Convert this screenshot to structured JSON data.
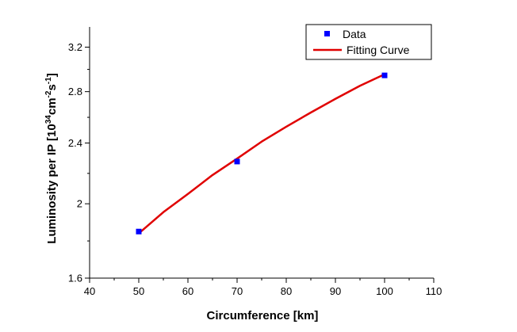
{
  "chart_data": {
    "type": "scatter",
    "xlabel": "Circumference [km]",
    "ylabel": {
      "prefix": "Luminosity per IP [10",
      "exp1": "34",
      "mid1": "cm",
      "exp2": "-2",
      "mid2": "s",
      "exp3": "-1",
      "suffix": "]"
    },
    "xlim": [
      40,
      110
    ],
    "ylim": [
      1.6,
      3.4
    ],
    "yscale": "log",
    "x_ticks": [
      40,
      50,
      60,
      70,
      80,
      90,
      100,
      110
    ],
    "x_tick_labels": [
      "40",
      "50",
      "60",
      "70",
      "80",
      "90",
      "100",
      "110"
    ],
    "y_ticks": [
      1.6,
      2,
      2.4,
      2.8,
      3.2
    ],
    "y_tick_labels": [
      "1.6",
      "2",
      "2.4",
      "2.8",
      "3.2"
    ],
    "series": [
      {
        "name": "Data",
        "kind": "scatter",
        "color": "#0000ff",
        "x": [
          50,
          70,
          100
        ],
        "y": [
          1.84,
          2.27,
          2.94
        ]
      },
      {
        "name": "Fitting Curve",
        "kind": "line",
        "color": "#e00000",
        "x": [
          50,
          55,
          60,
          65,
          70,
          75,
          80,
          85,
          90,
          95,
          100
        ],
        "y": [
          1.83,
          1.95,
          2.06,
          2.18,
          2.29,
          2.41,
          2.52,
          2.63,
          2.74,
          2.85,
          2.95
        ]
      }
    ],
    "legend": {
      "position": "top-right",
      "entries": [
        "Data",
        "Fitting Curve"
      ]
    }
  }
}
